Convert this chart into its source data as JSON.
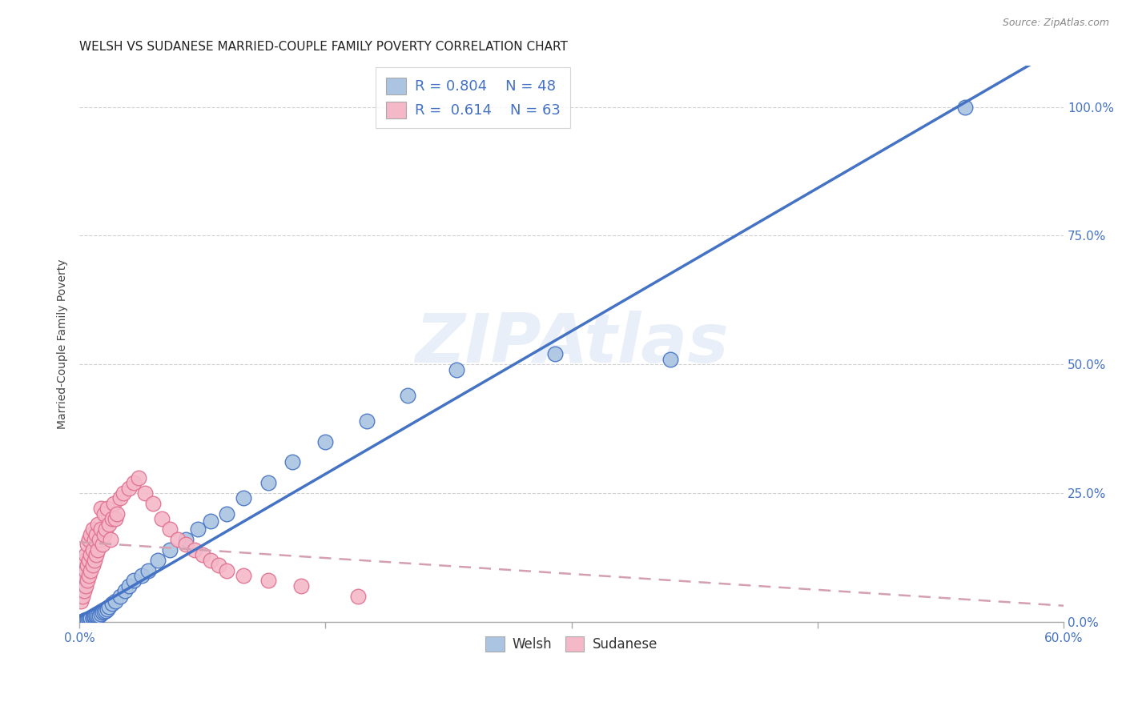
{
  "title": "WELSH VS SUDANESE MARRIED-COUPLE FAMILY POVERTY CORRELATION CHART",
  "source_text": "Source: ZipAtlas.com",
  "ylabel": "Married-Couple Family Poverty",
  "watermark": "ZIPAtlas",
  "xlim": [
    0.0,
    0.6
  ],
  "ylim": [
    0.0,
    1.08
  ],
  "yticks": [
    0.0,
    0.25,
    0.5,
    0.75,
    1.0
  ],
  "xticks": [
    0.0,
    0.15,
    0.3,
    0.45,
    0.6
  ],
  "welsh_R": 0.804,
  "welsh_N": 48,
  "sudanese_R": 0.614,
  "sudanese_N": 63,
  "welsh_color": "#aac4e2",
  "welsh_line_color": "#4472c4",
  "sudanese_color": "#f4b8c8",
  "sudanese_line_color": "#e07090",
  "sudanese_regline_color": "#d4a0b0",
  "background_color": "#ffffff",
  "grid_color": "#d0d0d0",
  "welsh_scatter_x": [
    0.002,
    0.003,
    0.004,
    0.004,
    0.005,
    0.005,
    0.006,
    0.006,
    0.007,
    0.007,
    0.008,
    0.008,
    0.009,
    0.009,
    0.01,
    0.01,
    0.011,
    0.012,
    0.013,
    0.014,
    0.015,
    0.016,
    0.017,
    0.018,
    0.02,
    0.022,
    0.025,
    0.028,
    0.03,
    0.033,
    0.038,
    0.042,
    0.048,
    0.055,
    0.065,
    0.072,
    0.08,
    0.09,
    0.1,
    0.115,
    0.13,
    0.15,
    0.175,
    0.2,
    0.23,
    0.29,
    0.36,
    0.54
  ],
  "welsh_scatter_y": [
    0.002,
    0.003,
    0.003,
    0.004,
    0.004,
    0.005,
    0.005,
    0.006,
    0.006,
    0.007,
    0.007,
    0.008,
    0.008,
    0.01,
    0.01,
    0.012,
    0.012,
    0.013,
    0.015,
    0.018,
    0.02,
    0.022,
    0.025,
    0.03,
    0.035,
    0.04,
    0.05,
    0.06,
    0.07,
    0.08,
    0.09,
    0.1,
    0.12,
    0.14,
    0.16,
    0.18,
    0.195,
    0.21,
    0.24,
    0.27,
    0.31,
    0.35,
    0.39,
    0.44,
    0.49,
    0.52,
    0.51,
    1.0
  ],
  "sudanese_scatter_x": [
    0.001,
    0.001,
    0.002,
    0.002,
    0.002,
    0.003,
    0.003,
    0.003,
    0.004,
    0.004,
    0.004,
    0.005,
    0.005,
    0.005,
    0.006,
    0.006,
    0.006,
    0.007,
    0.007,
    0.007,
    0.008,
    0.008,
    0.008,
    0.009,
    0.009,
    0.01,
    0.01,
    0.011,
    0.011,
    0.012,
    0.013,
    0.013,
    0.014,
    0.015,
    0.015,
    0.016,
    0.017,
    0.018,
    0.019,
    0.02,
    0.021,
    0.022,
    0.023,
    0.025,
    0.027,
    0.03,
    0.033,
    0.036,
    0.04,
    0.045,
    0.05,
    0.055,
    0.06,
    0.065,
    0.07,
    0.075,
    0.08,
    0.085,
    0.09,
    0.1,
    0.115,
    0.135,
    0.17
  ],
  "sudanese_scatter_y": [
    0.04,
    0.06,
    0.05,
    0.08,
    0.1,
    0.06,
    0.09,
    0.12,
    0.07,
    0.1,
    0.13,
    0.08,
    0.11,
    0.15,
    0.09,
    0.12,
    0.16,
    0.1,
    0.13,
    0.17,
    0.11,
    0.14,
    0.18,
    0.12,
    0.16,
    0.13,
    0.17,
    0.14,
    0.19,
    0.16,
    0.18,
    0.22,
    0.15,
    0.17,
    0.21,
    0.18,
    0.22,
    0.19,
    0.16,
    0.2,
    0.23,
    0.2,
    0.21,
    0.24,
    0.25,
    0.26,
    0.27,
    0.28,
    0.25,
    0.23,
    0.2,
    0.18,
    0.16,
    0.15,
    0.14,
    0.13,
    0.12,
    0.11,
    0.1,
    0.09,
    0.08,
    0.07,
    0.05
  ],
  "welsh_regline": [
    [
      -0.01,
      0.6
    ],
    [
      -0.015,
      0.87
    ]
  ],
  "sudanese_regline": [
    [
      0.0,
      0.6
    ],
    [
      0.04,
      0.77
    ]
  ]
}
